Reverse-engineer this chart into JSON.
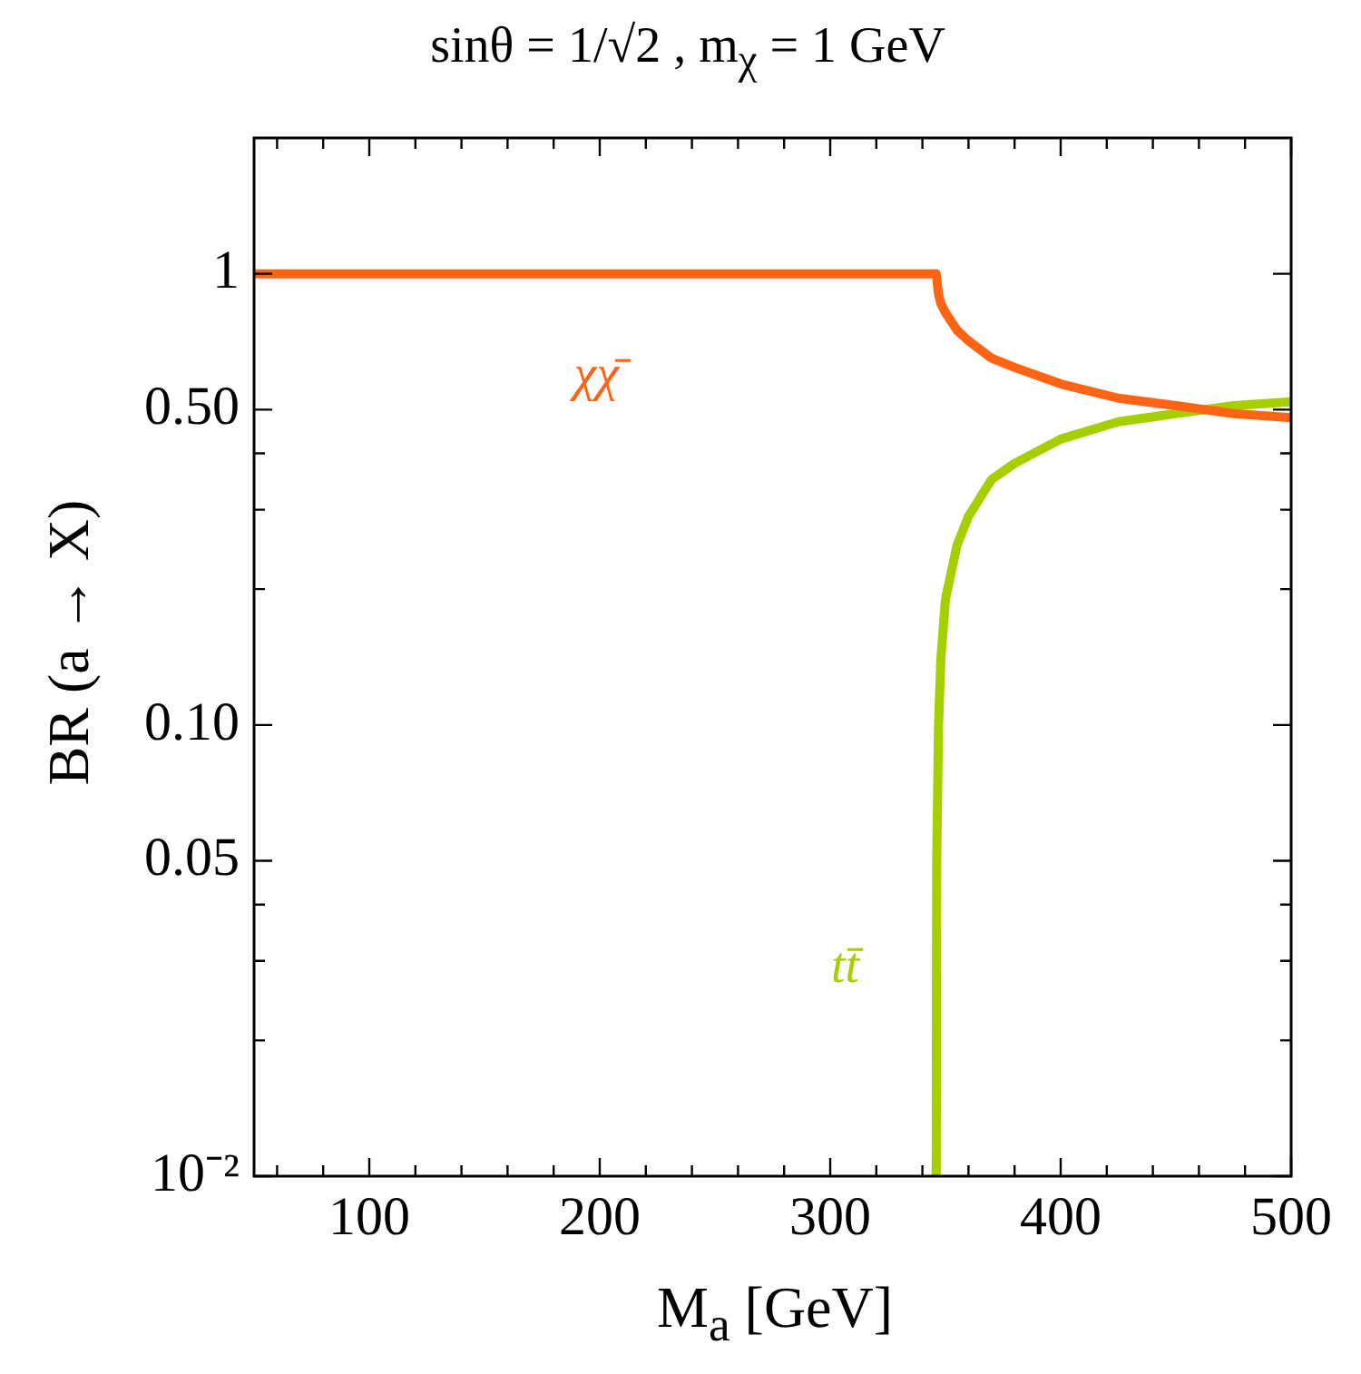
{
  "chart_data": {
    "type": "line",
    "title": "sinθ = 1/√2 , m$_{χ}$ = 1 GeV",
    "xlabel": "M$_{a}$  [GeV]",
    "ylabel": "BR (a → X)",
    "log": "y",
    "xlim": [
      50,
      500
    ],
    "ylim": [
      0.01,
      2
    ],
    "xticks": [
      {
        "value": 60,
        "label": null
      },
      {
        "value": 80,
        "label": null
      },
      100,
      {
        "value": 120,
        "label": null
      },
      {
        "value": 140,
        "label": null
      },
      {
        "value": 160,
        "label": null
      },
      {
        "value": 180,
        "label": null
      },
      200,
      {
        "value": 220,
        "label": null
      },
      {
        "value": 240,
        "label": null
      },
      {
        "value": 260,
        "label": null
      },
      {
        "value": 280,
        "label": null
      },
      300,
      {
        "value": 320,
        "label": null
      },
      {
        "value": 340,
        "label": null
      },
      {
        "value": 360,
        "label": null
      },
      {
        "value": 380,
        "label": null
      },
      400,
      {
        "value": 420,
        "label": null
      },
      {
        "value": 440,
        "label": null
      },
      {
        "value": 460,
        "label": null
      },
      {
        "value": 480,
        "label": null
      },
      500
    ],
    "yticks": [
      {
        "value": 0.01,
        "label": "10⁻²"
      },
      {
        "value": 0.02,
        "label": null
      },
      {
        "value": 0.03,
        "label": null
      },
      {
        "value": 0.04,
        "label": null
      },
      {
        "value": 0.05,
        "label": "0.05"
      },
      {
        "value": 0.1,
        "label": "0.10"
      },
      {
        "value": 0.2,
        "label": null
      },
      {
        "value": 0.3,
        "label": null
      },
      {
        "value": 0.4,
        "label": null
      },
      {
        "value": 0.5,
        "label": "0.50"
      },
      1
    ],
    "series": [
      {
        "name": "χχ̄",
        "color": "#ff6414",
        "x": [
          50,
          346,
          347,
          348,
          350,
          355,
          360,
          370,
          380,
          400,
          425,
          450,
          475,
          500
        ],
        "values": [
          1,
          1,
          0.9,
          0.86,
          0.82,
          0.75,
          0.71,
          0.65,
          0.62,
          0.57,
          0.53,
          0.51,
          0.49,
          0.48
        ]
      },
      {
        "name": "tt̄",
        "color": "#a6cf00",
        "x": [
          346,
          346.2,
          347,
          348,
          350,
          355,
          360,
          370,
          380,
          400,
          425,
          450,
          475,
          500
        ],
        "values": [
          0.01,
          0.05,
          0.1,
          0.14,
          0.19,
          0.25,
          0.29,
          0.35,
          0.38,
          0.43,
          0.47,
          0.49,
          0.51,
          0.52
        ]
      }
    ]
  }
}
